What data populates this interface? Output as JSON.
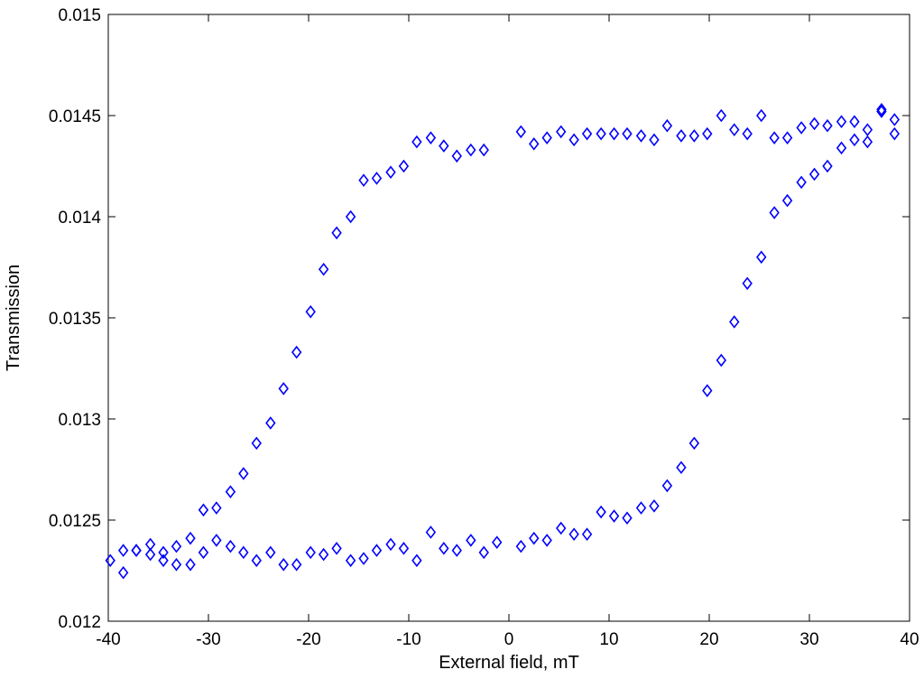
{
  "chart_data": {
    "type": "scatter",
    "xlabel": "External field, mT",
    "ylabel": "Transmission",
    "xlim": [
      -40,
      40
    ],
    "ylim": [
      0.012,
      0.015
    ],
    "xticks": [
      -40,
      -30,
      -20,
      -10,
      0,
      10,
      20,
      30,
      40
    ],
    "yticks": [
      0.012,
      0.0125,
      0.013,
      0.0135,
      0.014,
      0.0145,
      0.015
    ],
    "xtick_labels": [
      "-40",
      "-30",
      "-20",
      "-10",
      "0",
      "10",
      "20",
      "30",
      "40"
    ],
    "ytick_labels": [
      "0.012",
      "0.0125",
      "0.013",
      "0.0135",
      "0.014",
      "0.0145",
      "0.015"
    ],
    "grid": false,
    "marker": "diamond",
    "marker_color": "#0000ff",
    "series": [
      {
        "x": [
          -39.8,
          -38.5,
          -37.2,
          -35.8,
          -34.5,
          -33.2,
          -31.8,
          -30.5,
          -29.2,
          -27.8,
          -26.5,
          -25.2,
          -23.8,
          -22.5,
          -21.2,
          -19.8,
          -18.5,
          -17.2,
          -15.8,
          -14.5,
          -13.2,
          -11.8,
          -10.5,
          -9.2,
          -7.8,
          -6.5,
          -5.2,
          -3.8,
          -2.5,
          -1.2,
          1.2,
          2.5,
          3.8,
          5.2,
          6.5,
          7.8,
          9.2,
          10.5,
          11.8,
          13.2,
          14.5,
          15.8,
          17.2,
          18.5,
          19.8,
          21.2,
          22.5,
          23.8,
          25.2,
          26.5,
          27.8,
          29.2,
          30.5,
          31.8,
          33.2,
          34.5,
          35.8,
          37.2,
          38.5
        ],
        "y": [
          0.0123,
          0.01235,
          0.01235,
          0.01233,
          0.0123,
          0.01228,
          0.01228,
          0.01234,
          0.0124,
          0.01237,
          0.01234,
          0.0123,
          0.01234,
          0.01228,
          0.01228,
          0.01234,
          0.01233,
          0.01236,
          0.0123,
          0.01231,
          0.01235,
          0.01238,
          0.01236,
          0.0123,
          0.01244,
          0.01236,
          0.01235,
          0.0124,
          0.01234,
          0.01239,
          0.01237,
          0.01241,
          0.0124,
          0.01246,
          0.01243,
          0.01243,
          0.01254,
          0.01252,
          0.01251,
          0.01256,
          0.01257,
          0.01267,
          0.01276,
          0.01288,
          0.01314,
          0.01329,
          0.01348,
          0.01367,
          0.0138,
          0.01402,
          0.01408,
          0.01417,
          0.01421,
          0.01425,
          0.01434,
          0.01438,
          0.01437,
          0.01452,
          0.01441
        ]
      },
      {
        "x": [
          38.5,
          37.2,
          35.8,
          34.5,
          33.2,
          31.8,
          30.5,
          29.2,
          27.8,
          26.5,
          25.2,
          23.8,
          22.5,
          21.2,
          19.8,
          18.5,
          17.2,
          15.8,
          14.5,
          13.2,
          11.8,
          10.5,
          9.2,
          7.8,
          6.5,
          5.2,
          3.8,
          2.5,
          1.2,
          -2.5,
          -3.8,
          -5.2,
          -6.5,
          -7.8,
          -9.2,
          -10.5,
          -11.8,
          -13.2,
          -14.5,
          -15.8,
          -17.2,
          -18.5,
          -19.8,
          -21.2,
          -22.5,
          -23.8,
          -25.2,
          -26.5,
          -27.8,
          -29.2,
          -30.5,
          -31.8,
          -33.2,
          -34.5,
          -35.8,
          -37.2,
          -38.5
        ],
        "y": [
          0.01448,
          0.01453,
          0.01443,
          0.01447,
          0.01447,
          0.01445,
          0.01446,
          0.01444,
          0.01439,
          0.01439,
          0.0145,
          0.01441,
          0.01443,
          0.0145,
          0.01441,
          0.0144,
          0.0144,
          0.01445,
          0.01438,
          0.0144,
          0.01441,
          0.01441,
          0.01441,
          0.01441,
          0.01438,
          0.01442,
          0.01439,
          0.01436,
          0.01442,
          0.01433,
          0.01433,
          0.0143,
          0.01435,
          0.01439,
          0.01437,
          0.01425,
          0.01422,
          0.01419,
          0.01418,
          0.014,
          0.01392,
          0.01374,
          0.01353,
          0.01333,
          0.01315,
          0.01298,
          0.01288,
          0.01273,
          0.01264,
          0.01256,
          0.01255,
          0.01241,
          0.01237,
          0.01234,
          0.01238,
          0.01235,
          0.01224
        ]
      }
    ]
  }
}
